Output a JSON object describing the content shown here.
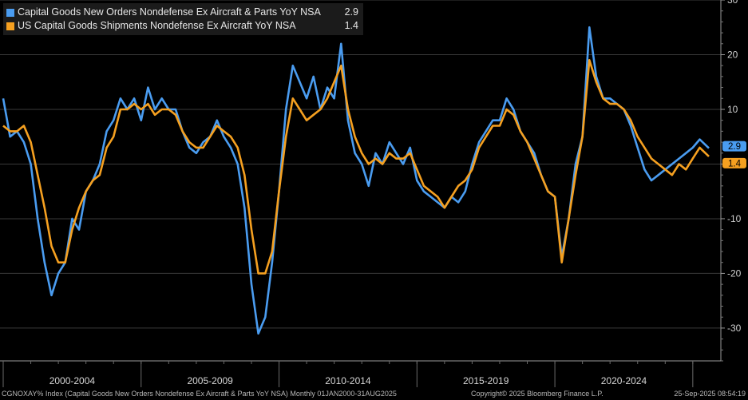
{
  "chart_data": {
    "type": "line",
    "x_range": [
      "2000-01",
      "2025-08"
    ],
    "ylim": [
      -36,
      30
    ],
    "yticks": [
      -30,
      -20,
      -10,
      0,
      10,
      20,
      30
    ],
    "grid": true,
    "legend_placement": "top-left",
    "x_period_labels": [
      "2000-2004",
      "2005-2009",
      "2010-2014",
      "2015-2019",
      "2020-2024"
    ],
    "series": [
      {
        "name": "Capital Goods New Orders Nondefense Ex Aircraft & Parts YoY NSA",
        "last_value": "2.9",
        "color": "#4a9cf0",
        "points": [
          [
            "2000-01",
            12
          ],
          [
            "2000-04",
            5
          ],
          [
            "2000-07",
            6
          ],
          [
            "2000-10",
            4
          ],
          [
            "2001-01",
            0
          ],
          [
            "2001-04",
            -10
          ],
          [
            "2001-07",
            -18
          ],
          [
            "2001-10",
            -24
          ],
          [
            "2002-01",
            -20
          ],
          [
            "2002-04",
            -18
          ],
          [
            "2002-07",
            -10
          ],
          [
            "2002-10",
            -12
          ],
          [
            "2003-01",
            -5
          ],
          [
            "2003-04",
            -3
          ],
          [
            "2003-07",
            0
          ],
          [
            "2003-10",
            6
          ],
          [
            "2004-01",
            8
          ],
          [
            "2004-04",
            12
          ],
          [
            "2004-07",
            10
          ],
          [
            "2004-10",
            12
          ],
          [
            "2005-01",
            8
          ],
          [
            "2005-04",
            14
          ],
          [
            "2005-07",
            10
          ],
          [
            "2005-10",
            12
          ],
          [
            "2006-01",
            10
          ],
          [
            "2006-04",
            10
          ],
          [
            "2006-07",
            6
          ],
          [
            "2006-10",
            3
          ],
          [
            "2007-01",
            2
          ],
          [
            "2007-04",
            4
          ],
          [
            "2007-07",
            5
          ],
          [
            "2007-10",
            8
          ],
          [
            "2008-01",
            5
          ],
          [
            "2008-04",
            3
          ],
          [
            "2008-07",
            0
          ],
          [
            "2008-10",
            -8
          ],
          [
            "2009-01",
            -22
          ],
          [
            "2009-04",
            -31
          ],
          [
            "2009-07",
            -28
          ],
          [
            "2009-10",
            -18
          ],
          [
            "2010-01",
            -5
          ],
          [
            "2010-04",
            10
          ],
          [
            "2010-07",
            18
          ],
          [
            "2010-10",
            15
          ],
          [
            "2011-01",
            12
          ],
          [
            "2011-04",
            16
          ],
          [
            "2011-07",
            10
          ],
          [
            "2011-10",
            14
          ],
          [
            "2012-01",
            12
          ],
          [
            "2012-04",
            22
          ],
          [
            "2012-07",
            8
          ],
          [
            "2012-10",
            2
          ],
          [
            "2013-01",
            0
          ],
          [
            "2013-04",
            -4
          ],
          [
            "2013-07",
            2
          ],
          [
            "2013-10",
            0
          ],
          [
            "2014-01",
            4
          ],
          [
            "2014-04",
            2
          ],
          [
            "2014-07",
            0
          ],
          [
            "2014-10",
            3
          ],
          [
            "2015-01",
            -3
          ],
          [
            "2015-04",
            -5
          ],
          [
            "2015-07",
            -6
          ],
          [
            "2015-10",
            -7
          ],
          [
            "2016-01",
            -8
          ],
          [
            "2016-04",
            -6
          ],
          [
            "2016-07",
            -7
          ],
          [
            "2016-10",
            -5
          ],
          [
            "2017-01",
            0
          ],
          [
            "2017-04",
            4
          ],
          [
            "2017-07",
            6
          ],
          [
            "2017-10",
            8
          ],
          [
            "2018-01",
            8
          ],
          [
            "2018-04",
            12
          ],
          [
            "2018-07",
            10
          ],
          [
            "2018-10",
            6
          ],
          [
            "2019-01",
            4
          ],
          [
            "2019-04",
            2
          ],
          [
            "2019-07",
            -2
          ],
          [
            "2019-10",
            -5
          ],
          [
            "2020-01",
            -6
          ],
          [
            "2020-04",
            -17
          ],
          [
            "2020-07",
            -10
          ],
          [
            "2020-10",
            0
          ],
          [
            "2021-01",
            5
          ],
          [
            "2021-04",
            25
          ],
          [
            "2021-07",
            16
          ],
          [
            "2021-10",
            12
          ],
          [
            "2022-01",
            12
          ],
          [
            "2022-04",
            11
          ],
          [
            "2022-07",
            10
          ],
          [
            "2022-10",
            7
          ],
          [
            "2023-01",
            3
          ],
          [
            "2023-04",
            -1
          ],
          [
            "2023-07",
            -3
          ],
          [
            "2023-10",
            -2
          ],
          [
            "2024-01",
            -1
          ],
          [
            "2024-04",
            0
          ],
          [
            "2024-07",
            1
          ],
          [
            "2024-10",
            2
          ],
          [
            "2025-01",
            3
          ],
          [
            "2025-04",
            4.5
          ],
          [
            "2025-08",
            2.9
          ]
        ]
      },
      {
        "name": "US Capital Goods Shipments Nondefense Ex Aircraft YoY NSA",
        "last_value": "1.4",
        "color": "#f5a020",
        "points": [
          [
            "2000-01",
            7
          ],
          [
            "2000-04",
            6
          ],
          [
            "2000-07",
            6
          ],
          [
            "2000-10",
            7
          ],
          [
            "2001-01",
            4
          ],
          [
            "2001-04",
            -2
          ],
          [
            "2001-07",
            -8
          ],
          [
            "2001-10",
            -15
          ],
          [
            "2002-01",
            -18
          ],
          [
            "2002-04",
            -18
          ],
          [
            "2002-07",
            -12
          ],
          [
            "2002-10",
            -8
          ],
          [
            "2003-01",
            -5
          ],
          [
            "2003-04",
            -3
          ],
          [
            "2003-07",
            -2
          ],
          [
            "2003-10",
            3
          ],
          [
            "2004-01",
            5
          ],
          [
            "2004-04",
            10
          ],
          [
            "2004-07",
            10
          ],
          [
            "2004-10",
            11
          ],
          [
            "2005-01",
            10
          ],
          [
            "2005-04",
            11
          ],
          [
            "2005-07",
            9
          ],
          [
            "2005-10",
            10
          ],
          [
            "2006-01",
            10
          ],
          [
            "2006-04",
            9
          ],
          [
            "2006-07",
            6
          ],
          [
            "2006-10",
            4
          ],
          [
            "2007-01",
            3
          ],
          [
            "2007-04",
            3
          ],
          [
            "2007-07",
            5
          ],
          [
            "2007-10",
            7
          ],
          [
            "2008-01",
            6
          ],
          [
            "2008-04",
            5
          ],
          [
            "2008-07",
            3
          ],
          [
            "2008-10",
            -2
          ],
          [
            "2009-01",
            -12
          ],
          [
            "2009-04",
            -20
          ],
          [
            "2009-07",
            -20
          ],
          [
            "2009-10",
            -16
          ],
          [
            "2010-01",
            -5
          ],
          [
            "2010-04",
            5
          ],
          [
            "2010-07",
            12
          ],
          [
            "2010-10",
            10
          ],
          [
            "2011-01",
            8
          ],
          [
            "2011-04",
            9
          ],
          [
            "2011-07",
            10
          ],
          [
            "2011-10",
            12
          ],
          [
            "2012-01",
            15
          ],
          [
            "2012-04",
            18
          ],
          [
            "2012-07",
            10
          ],
          [
            "2012-10",
            5
          ],
          [
            "2013-01",
            2
          ],
          [
            "2013-04",
            0
          ],
          [
            "2013-07",
            1
          ],
          [
            "2013-10",
            0
          ],
          [
            "2014-01",
            2
          ],
          [
            "2014-04",
            1
          ],
          [
            "2014-07",
            1
          ],
          [
            "2014-10",
            2
          ],
          [
            "2015-01",
            -1
          ],
          [
            "2015-04",
            -4
          ],
          [
            "2015-07",
            -5
          ],
          [
            "2015-10",
            -6
          ],
          [
            "2016-01",
            -8
          ],
          [
            "2016-04",
            -6
          ],
          [
            "2016-07",
            -4
          ],
          [
            "2016-10",
            -3
          ],
          [
            "2017-01",
            -1
          ],
          [
            "2017-04",
            3
          ],
          [
            "2017-07",
            5
          ],
          [
            "2017-10",
            7
          ],
          [
            "2018-01",
            7
          ],
          [
            "2018-04",
            10
          ],
          [
            "2018-07",
            9
          ],
          [
            "2018-10",
            6
          ],
          [
            "2019-01",
            4
          ],
          [
            "2019-04",
            1
          ],
          [
            "2019-07",
            -2
          ],
          [
            "2019-10",
            -5
          ],
          [
            "2020-01",
            -6
          ],
          [
            "2020-04",
            -18
          ],
          [
            "2020-07",
            -10
          ],
          [
            "2020-10",
            -2
          ],
          [
            "2021-01",
            5
          ],
          [
            "2021-04",
            19
          ],
          [
            "2021-07",
            15
          ],
          [
            "2021-10",
            12
          ],
          [
            "2022-01",
            11
          ],
          [
            "2022-04",
            11
          ],
          [
            "2022-07",
            10
          ],
          [
            "2022-10",
            8
          ],
          [
            "2023-01",
            5
          ],
          [
            "2023-04",
            3
          ],
          [
            "2023-07",
            1
          ],
          [
            "2023-10",
            0
          ],
          [
            "2024-01",
            -1
          ],
          [
            "2024-04",
            -2
          ],
          [
            "2024-07",
            0
          ],
          [
            "2024-10",
            -1
          ],
          [
            "2025-01",
            1
          ],
          [
            "2025-04",
            3
          ],
          [
            "2025-08",
            1.4
          ]
        ]
      }
    ]
  },
  "footer": {
    "source": "CGNOXAY% Index (Capital Goods New Orders Nondefense Ex Aircraft & Parts YoY NSA)  Monthly 01JAN2000-31AUG2025",
    "copyright": "Copyright© 2025 Bloomberg Finance L.P.",
    "timestamp": "25-Sep-2025 08:54:19"
  }
}
